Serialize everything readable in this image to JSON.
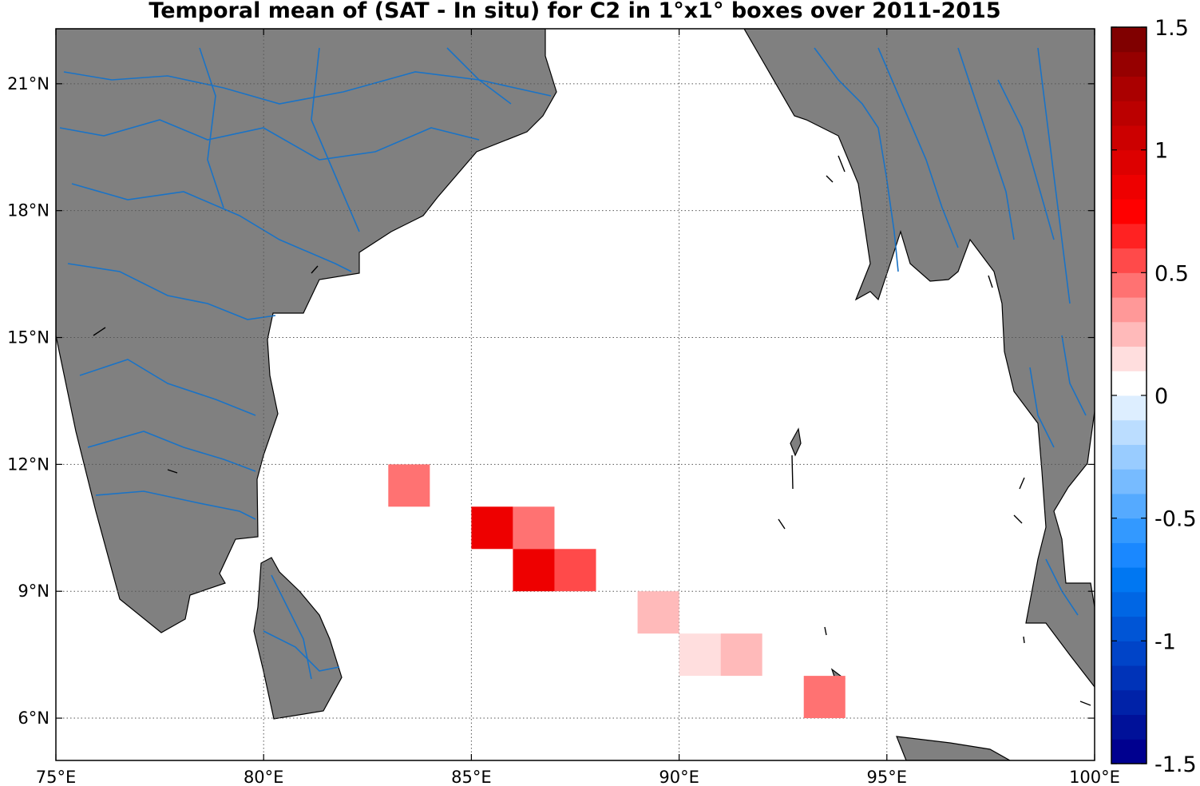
{
  "title": "Temporal mean of (SAT - In situ) for C2 in 1°x1° boxes over 2011-2015",
  "map": {
    "lon_range": [
      75,
      100
    ],
    "lat_range": [
      5,
      22.3
    ],
    "land_color": "#808080",
    "river_color": "#1a73c6",
    "ocean_color": "#ffffff",
    "grid": true,
    "lon_ticks": [
      {
        "value": 75,
        "label": "75°E"
      },
      {
        "value": 80,
        "label": "80°E"
      },
      {
        "value": 85,
        "label": "85°E"
      },
      {
        "value": 90,
        "label": "90°E"
      },
      {
        "value": 95,
        "label": "95°E"
      },
      {
        "value": 100,
        "label": "100°E"
      }
    ],
    "lat_ticks": [
      {
        "value": 6,
        "label": "6°N"
      },
      {
        "value": 9,
        "label": "9°N"
      },
      {
        "value": 12,
        "label": "12°N"
      },
      {
        "value": 15,
        "label": "15°N"
      },
      {
        "value": 18,
        "label": "18°N"
      },
      {
        "value": 21,
        "label": "21°N"
      }
    ]
  },
  "chart_data": {
    "type": "heatmap",
    "title": "Temporal mean of (SAT - In situ) for C2 in 1°x1° boxes over 2011-2015",
    "cell_size_deg": 1,
    "cells": [
      {
        "lon": 83,
        "lat": 11,
        "value": 0.4
      },
      {
        "lon": 85,
        "lat": 10,
        "value": 0.9
      },
      {
        "lon": 86,
        "lat": 10,
        "value": 0.4
      },
      {
        "lon": 86,
        "lat": 9,
        "value": 0.8
      },
      {
        "lon": 87,
        "lat": 9,
        "value": 0.5
      },
      {
        "lon": 89,
        "lat": 8,
        "value": 0.25
      },
      {
        "lon": 90,
        "lat": 7,
        "value": 0.1
      },
      {
        "lon": 91,
        "lat": 7,
        "value": 0.25
      },
      {
        "lon": 93,
        "lat": 6,
        "value": 0.4
      }
    ],
    "colorbar": {
      "range": [
        -1.5,
        1.5
      ],
      "steps": 30,
      "ticks": [
        {
          "value": 1.5,
          "label": "1.5"
        },
        {
          "value": 1,
          "label": "1"
        },
        {
          "value": 0.5,
          "label": "0.5"
        },
        {
          "value": 0,
          "label": "0"
        },
        {
          "value": -0.5,
          "label": "-0.5"
        },
        {
          "value": -1,
          "label": "-1"
        },
        {
          "value": -1.5,
          "label": "-1.5"
        }
      ],
      "colors": [
        "#00008f",
        "#001199",
        "#0022a8",
        "#0033b8",
        "#0044c8",
        "#0055d6",
        "#0066e4",
        "#0077f2",
        "#1a88ff",
        "#3399ff",
        "#55aaff",
        "#77bbff",
        "#99ccff",
        "#bbddff",
        "#ddeeff",
        "#ffffff",
        "#ffdede",
        "#ffbaba",
        "#ff9898",
        "#ff7272",
        "#ff4a4a",
        "#ff2222",
        "#ff0000",
        "#ee0000",
        "#dd0000",
        "#cc0000",
        "#bb0000",
        "#aa0000",
        "#960000",
        "#800000"
      ]
    }
  }
}
